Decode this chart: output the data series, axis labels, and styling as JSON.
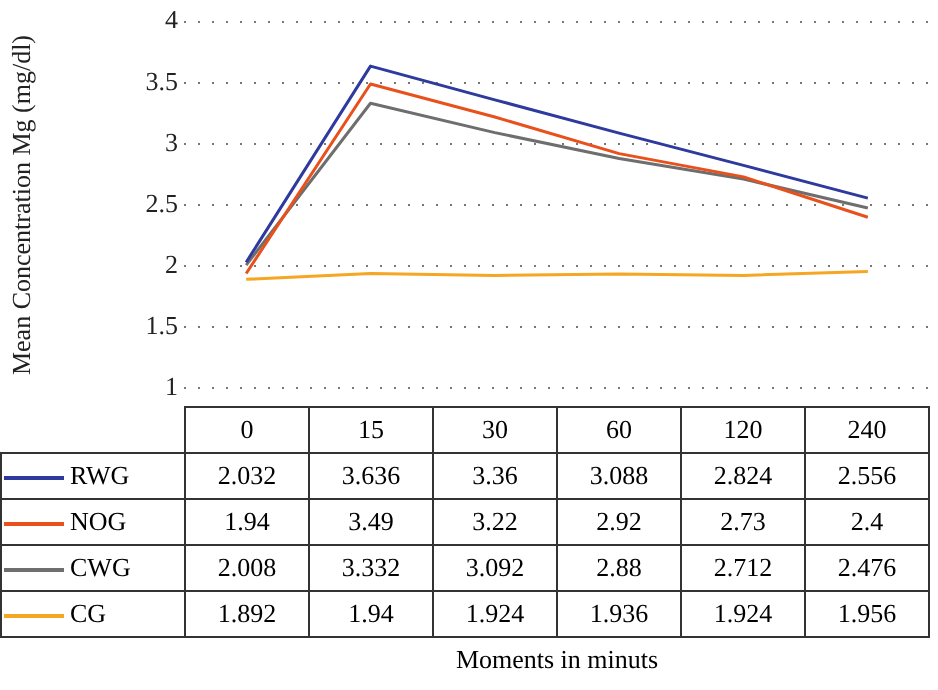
{
  "chart_data": {
    "type": "line",
    "annotations": [
      "Moments in minuts"
    ],
    "ylabel": "Mean Concentration Mg (mg/dl)",
    "categories": [
      "0",
      "15",
      "30",
      "60",
      "120",
      "240"
    ],
    "series": [
      {
        "name": "RWG",
        "color": "#2e3a9e",
        "values": [
          2.032,
          3.636,
          3.36,
          3.088,
          2.824,
          2.556
        ]
      },
      {
        "name": "NOG",
        "color": "#e8501c",
        "values": [
          1.94,
          3.49,
          3.22,
          2.92,
          2.73,
          2.4
        ]
      },
      {
        "name": "CWG",
        "color": "#6e6e6e",
        "values": [
          2.008,
          3.332,
          3.092,
          2.88,
          2.712,
          2.476
        ]
      },
      {
        "name": "CG",
        "color": "#f5a623",
        "values": [
          1.892,
          1.94,
          1.924,
          1.936,
          1.924,
          1.956
        ]
      }
    ],
    "ylim": [
      1,
      4
    ],
    "yticks": [
      1,
      1.5,
      2,
      2.5,
      3,
      3.5,
      4
    ],
    "grid": "y",
    "legend": "bottom",
    "data_labels": true,
    "marker": "none",
    "line_style": "solid"
  }
}
